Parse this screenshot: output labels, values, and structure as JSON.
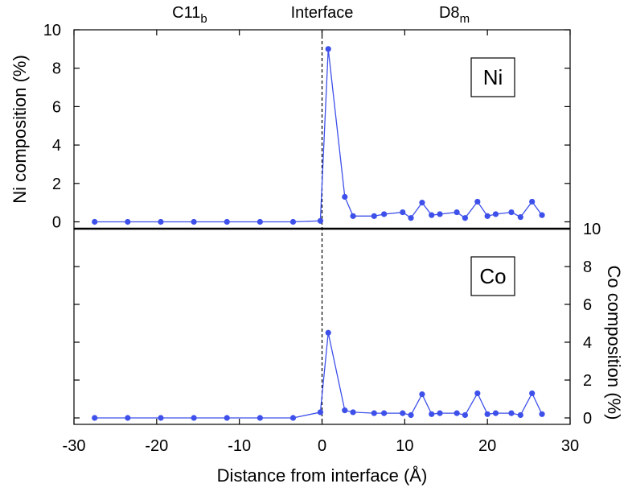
{
  "chart_data": {
    "type": "line",
    "xlabel": "Distance from interface (Å)",
    "xlim": [
      -30,
      30
    ],
    "x_ticks": [
      "-30",
      "-20",
      "-10",
      "0",
      "10",
      "20",
      "30"
    ],
    "x_tick_values": [
      -30,
      -20,
      -10,
      0,
      10,
      20,
      30
    ],
    "region_labels": [
      {
        "main": "C11",
        "sub": "b",
        "x": -16
      },
      {
        "main": "Interface",
        "sub": "",
        "x": 0
      },
      {
        "main": "D8",
        "sub": "m",
        "x": 16
      }
    ],
    "interface_line_x": 0,
    "series_color": "#3e50ea",
    "x": [
      -27.5,
      -23.5,
      -19.5,
      -15.5,
      -11.5,
      -7.5,
      -3.5,
      -0.2,
      0.75,
      2.75,
      3.75,
      6.3,
      7.5,
      9.75,
      10.75,
      12.1,
      13.25,
      14.25,
      16.3,
      17.3,
      18.8,
      20.0,
      21.0,
      22.9,
      24.0,
      25.4,
      26.6
    ],
    "panels": [
      {
        "name": "Ni",
        "label": "Ni",
        "ylabel": "Ni composition (%)",
        "ylim": [
          -0.35,
          10
        ],
        "y_ticks": [
          "0",
          "2",
          "4",
          "6",
          "8",
          "10"
        ],
        "y_tick_values": [
          0,
          2,
          4,
          6,
          8,
          10
        ],
        "y_axis_side": "left",
        "values": [
          0.0,
          0.0,
          0.0,
          0.0,
          0.0,
          0.0,
          0.0,
          0.05,
          9.0,
          1.3,
          0.3,
          0.3,
          0.4,
          0.5,
          0.2,
          1.0,
          0.35,
          0.4,
          0.5,
          0.2,
          1.05,
          0.3,
          0.4,
          0.5,
          0.25,
          1.05,
          0.35
        ]
      },
      {
        "name": "Co",
        "label": "Co",
        "ylabel": "Co composition (%)",
        "ylim": [
          -0.35,
          10
        ],
        "y_ticks": [
          "0",
          "2",
          "4",
          "6",
          "8",
          "10"
        ],
        "y_tick_values": [
          0,
          2,
          4,
          6,
          8,
          10
        ],
        "y_axis_side": "right",
        "values": [
          0.0,
          0.0,
          0.0,
          0.0,
          0.0,
          0.0,
          0.0,
          0.3,
          4.5,
          0.4,
          0.3,
          0.25,
          0.25,
          0.25,
          0.15,
          1.25,
          0.2,
          0.25,
          0.25,
          0.15,
          1.3,
          0.2,
          0.25,
          0.25,
          0.15,
          1.3,
          0.2
        ]
      }
    ]
  }
}
